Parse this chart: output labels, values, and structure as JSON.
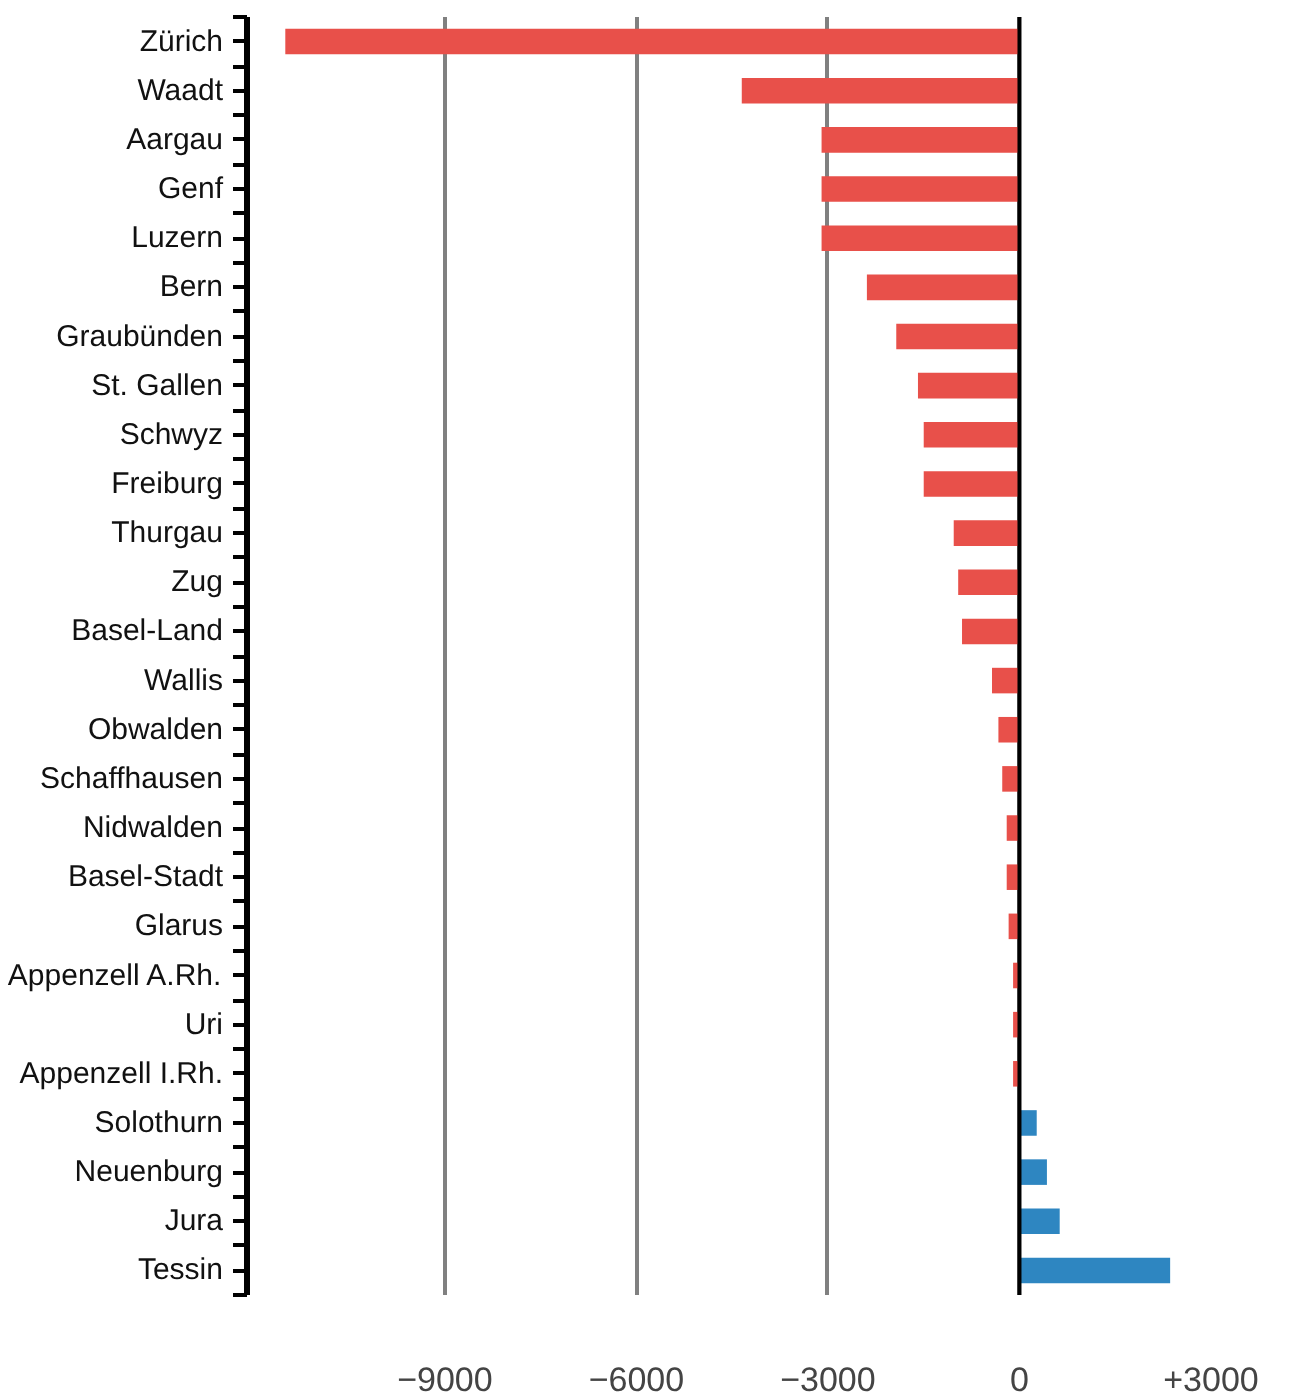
{
  "chart_data": {
    "type": "bar",
    "orientation": "horizontal",
    "categories": [
      "Zürich",
      "Waadt",
      "Aargau",
      "Genf",
      "Luzern",
      "Bern",
      "Graubünden",
      "St. Gallen",
      "Schwyz",
      "Freiburg",
      "Thurgau",
      "Zug",
      "Basel-Land",
      "Wallis",
      "Obwalden",
      "Schaffhausen",
      "Nidwalden",
      "Basel-Stadt",
      "Glarus",
      "Appenzell A.Rh.",
      "Uri",
      "Appenzell I.Rh.",
      "Solothurn",
      "Neuenburg",
      "Jura",
      "Tessin"
    ],
    "values": [
      -11500,
      -4350,
      -3100,
      -3100,
      -3100,
      -2390,
      -1930,
      -1590,
      -1500,
      -1500,
      -1030,
      -960,
      -900,
      -430,
      -330,
      -270,
      -200,
      -200,
      -170,
      -100,
      -100,
      -100,
      270,
      430,
      630,
      2360
    ],
    "colors": [
      "#e8504a",
      "#e8504a",
      "#e8504a",
      "#e8504a",
      "#e8504a",
      "#e8504a",
      "#e8504a",
      "#e8504a",
      "#e8504a",
      "#e8504a",
      "#e8504a",
      "#e8504a",
      "#e8504a",
      "#e8504a",
      "#e8504a",
      "#e8504a",
      "#e8504a",
      "#e8504a",
      "#e8504a",
      "#e8504a",
      "#e8504a",
      "#e8504a",
      "#2e86c1",
      "#2e86c1",
      "#2e86c1",
      "#2e86c1"
    ],
    "xlim": [
      -12100,
      3000
    ],
    "xticks": [
      {
        "value": -9000,
        "label": "−9000"
      },
      {
        "value": -6000,
        "label": "−6000"
      },
      {
        "value": -3000,
        "label": "−3000"
      },
      0,
      {
        "value": 3000,
        "label": "+3000"
      }
    ],
    "grid": "x"
  }
}
